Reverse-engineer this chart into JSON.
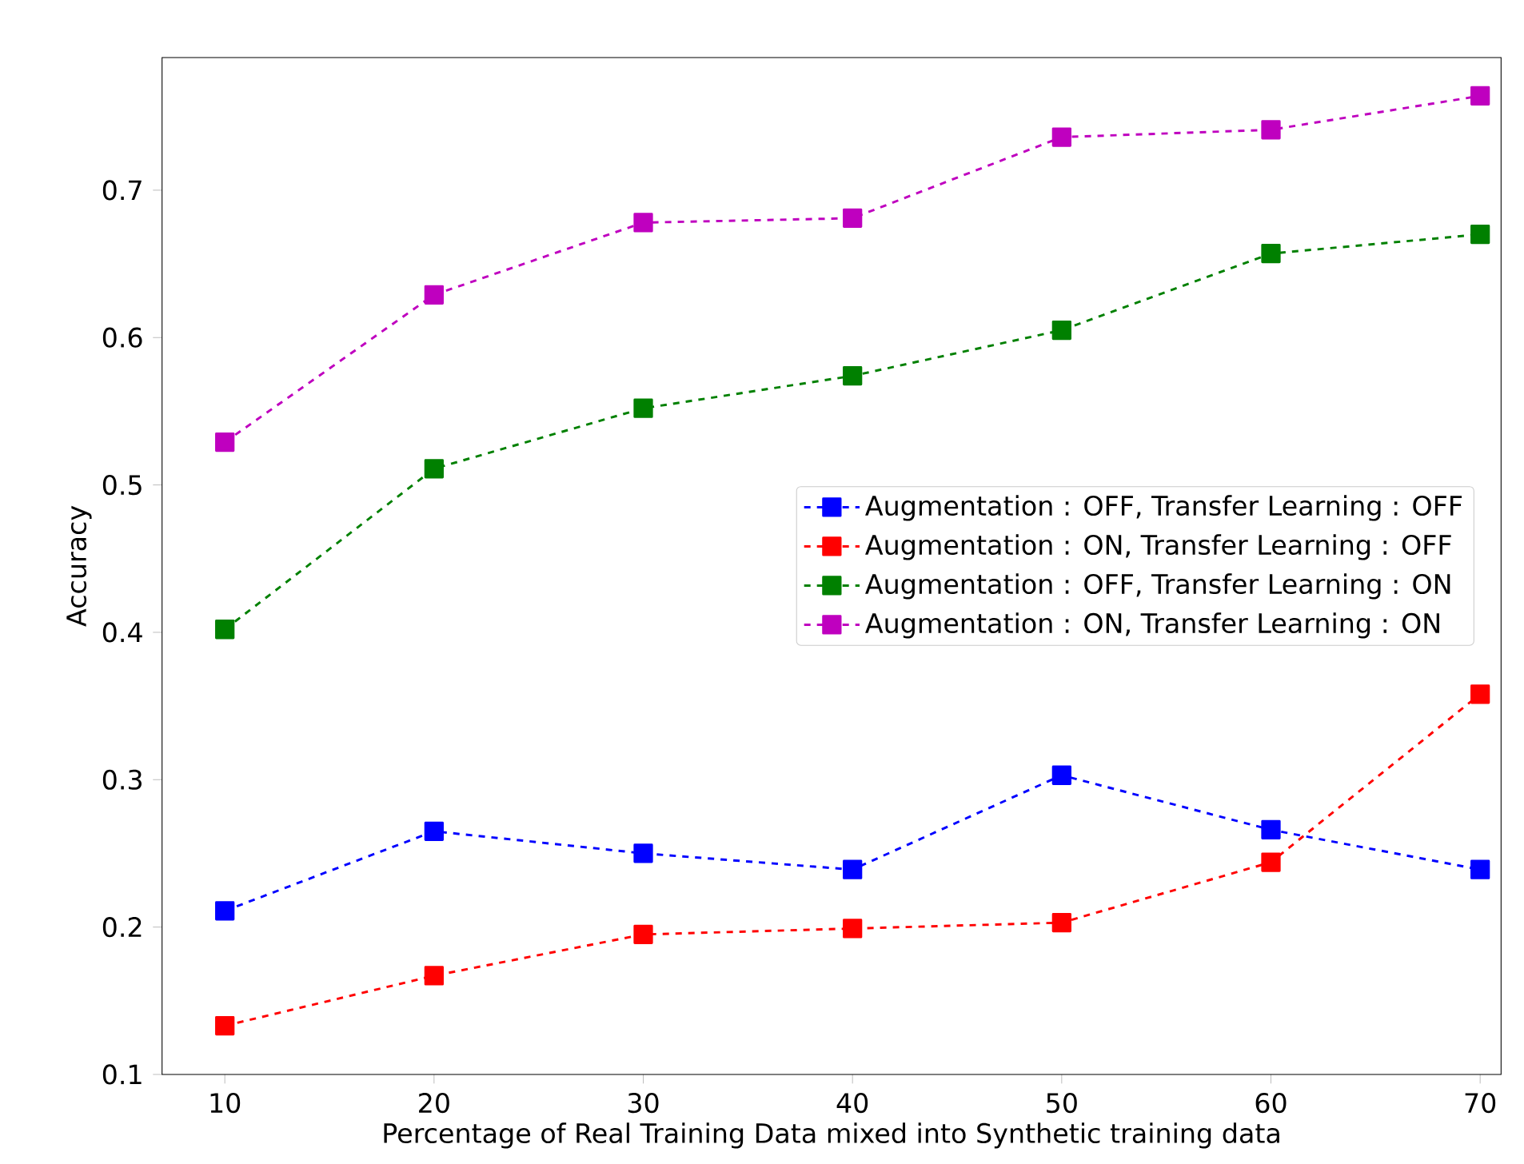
{
  "chart_data": {
    "type": "line",
    "xlabel": "Percentage of Real Training Data mixed into Synthetic training data",
    "ylabel": "Accuracy",
    "x": [
      10,
      20,
      30,
      40,
      50,
      60,
      70
    ],
    "xlim": [
      7,
      71
    ],
    "xticks": [
      10,
      20,
      30,
      40,
      50,
      60,
      70
    ],
    "ylim": [
      0.1,
      0.79
    ],
    "yticks": [
      0.1,
      0.2,
      0.3,
      0.4,
      0.5,
      0.6,
      0.7
    ],
    "marker": "square",
    "line_style": "dashed",
    "legend": "center right",
    "series": [
      {
        "name": "Augmentation : OFF, Transfer Learning : OFF",
        "color": "#0000ff",
        "values": [
          0.211,
          0.265,
          0.25,
          0.239,
          0.303,
          0.266,
          0.239
        ]
      },
      {
        "name": "Augmentation : ON, Transfer Learning : OFF",
        "color": "#ff0000",
        "values": [
          0.133,
          0.167,
          0.195,
          0.199,
          0.203,
          0.244,
          0.358
        ]
      },
      {
        "name": "Augmentation : OFF, Transfer Learning : ON",
        "color": "#008000",
        "values": [
          0.402,
          0.511,
          0.552,
          0.574,
          0.605,
          0.657,
          0.67
        ]
      },
      {
        "name": "Augmentation : ON, Transfer Learning : ON",
        "color": "#bf00bf",
        "values": [
          0.529,
          0.629,
          0.678,
          0.681,
          0.736,
          0.741,
          0.764
        ]
      }
    ]
  }
}
